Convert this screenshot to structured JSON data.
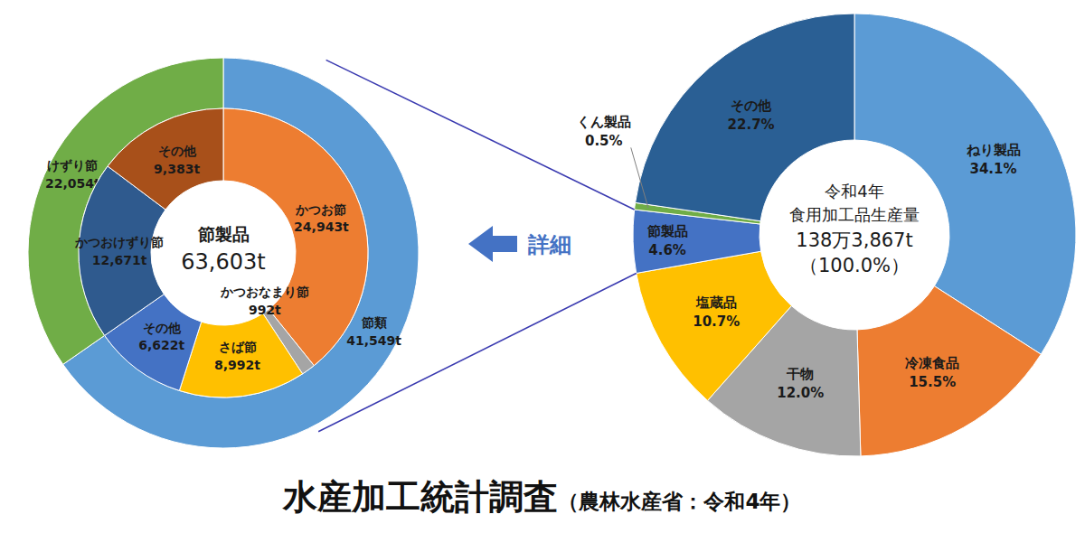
{
  "title": "水産加工統計調査",
  "source": "（農林水産省：令和4年）",
  "arrow_label": "詳細",
  "chart_data": [
    {
      "type": "sunburst",
      "title": "節製品",
      "subtitle": "63,603t",
      "data_labels": true,
      "outer": {
        "categories": [
          "節類",
          "けずり節"
        ],
        "values": [
          41549,
          22054
        ],
        "value_labels": [
          "41,549t",
          "22,054t"
        ],
        "colors": [
          "#5b9bd5",
          "#70ad47"
        ]
      },
      "inner": {
        "categories": [
          "かつお節",
          "かつおなまり節",
          "さば節",
          "その他",
          "かつおけずり節",
          "その他"
        ],
        "values": [
          24943,
          992,
          8992,
          6622,
          12671,
          9383
        ],
        "value_labels": [
          "24,943t",
          "992t",
          "8,992t",
          "6,622t",
          "12,671t",
          "9,383t"
        ],
        "colors": [
          "#ed7d31",
          "#a5a5a5",
          "#ffc000",
          "#4472c4",
          "#2f5a8e",
          "#a8501a"
        ]
      }
    },
    {
      "type": "donut",
      "title": "令和4年",
      "subtitle": "食用加工品生産量",
      "annotations": [
        "138万3,867t",
        "（100.0%）"
      ],
      "data_labels": true,
      "categories": [
        "ねり製品",
        "冷凍食品",
        "干物",
        "塩蔵品",
        "節製品",
        "くん製品",
        "その他"
      ],
      "values": [
        34.1,
        15.5,
        12.0,
        10.7,
        4.6,
        0.5,
        22.7
      ],
      "value_labels": [
        "34.1%",
        "15.5%",
        "12.0%",
        "10.7%",
        "4.6%",
        "0.5%",
        "22.7%"
      ],
      "colors": [
        "#5b9bd5",
        "#ed7d31",
        "#a5a5a5",
        "#ffc000",
        "#4472c4",
        "#70ad47",
        "#2a5f94"
      ]
    }
  ]
}
